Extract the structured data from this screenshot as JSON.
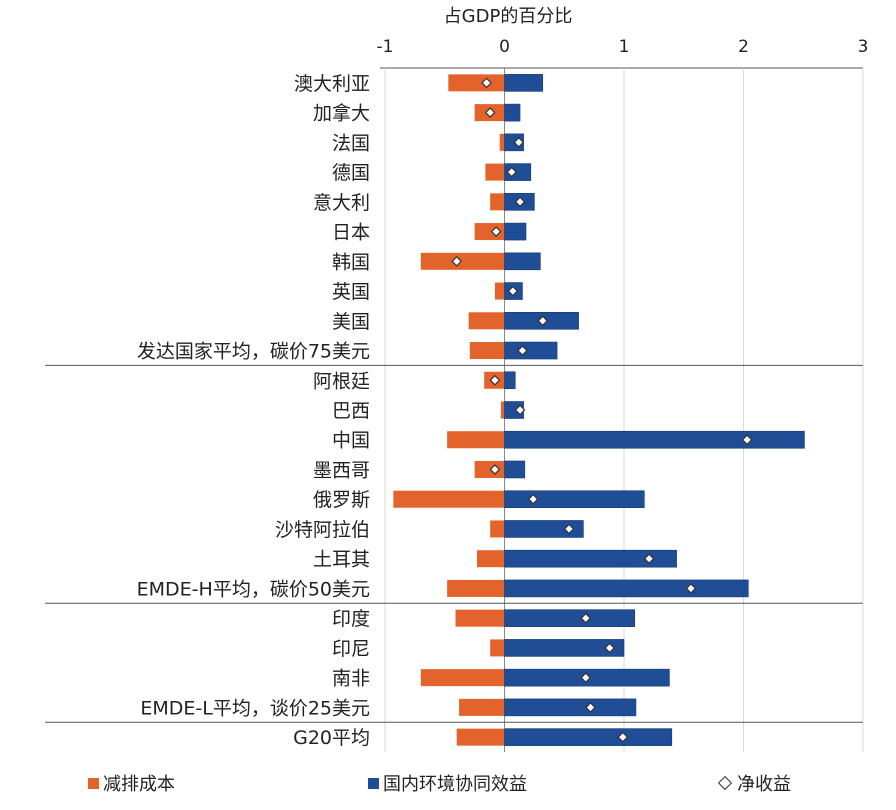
{
  "chart_data": {
    "type": "bar",
    "orientation": "horizontal",
    "title": "占GDP的百分比",
    "xlim": [
      -1,
      3
    ],
    "xticks": [
      "-1",
      "0",
      "1",
      "2",
      "3"
    ],
    "grid": true,
    "legend_position": "bottom",
    "categories": [
      "澳大利亚",
      "加拿大",
      "法国",
      "德国",
      "意大利",
      "日本",
      "韩国",
      "英国",
      "美国",
      "发达国家平均，碳价75美元",
      "阿根廷",
      "巴西",
      "中国",
      "墨西哥",
      "俄罗斯",
      "沙特阿拉伯",
      "土耳其",
      "EMDE-H平均，碳价50美元",
      "印度",
      "印尼",
      "南非",
      "EMDE-L平均，谈价25美元",
      "G20平均"
    ],
    "series": [
      {
        "name": "减排成本",
        "color": "#e2632c",
        "kind": "bar",
        "values": [
          -0.47,
          -0.25,
          -0.04,
          -0.16,
          -0.12,
          -0.25,
          -0.7,
          -0.08,
          -0.3,
          -0.29,
          -0.17,
          -0.03,
          -0.48,
          -0.25,
          -0.93,
          -0.12,
          -0.23,
          -0.48,
          -0.41,
          -0.12,
          -0.7,
          -0.38,
          -0.4
        ]
      },
      {
        "name": "国内环境协同效益",
        "color": "#1f4e96",
        "kind": "bar",
        "values": [
          0.32,
          0.13,
          0.16,
          0.22,
          0.25,
          0.18,
          0.3,
          0.15,
          0.62,
          0.44,
          0.09,
          0.16,
          2.51,
          0.17,
          1.17,
          0.66,
          1.44,
          2.04,
          1.09,
          1.0,
          1.38,
          1.1,
          1.4
        ]
      },
      {
        "name": "净收益",
        "color": "#ffffff",
        "kind": "marker",
        "values": [
          -0.15,
          -0.12,
          0.12,
          0.06,
          0.13,
          -0.07,
          -0.4,
          0.07,
          0.32,
          0.15,
          -0.08,
          0.13,
          2.03,
          -0.08,
          0.24,
          0.54,
          1.21,
          1.56,
          0.68,
          0.88,
          0.68,
          0.72,
          0.99
        ]
      }
    ],
    "group_separators_after": [
      9,
      17,
      21
    ]
  }
}
